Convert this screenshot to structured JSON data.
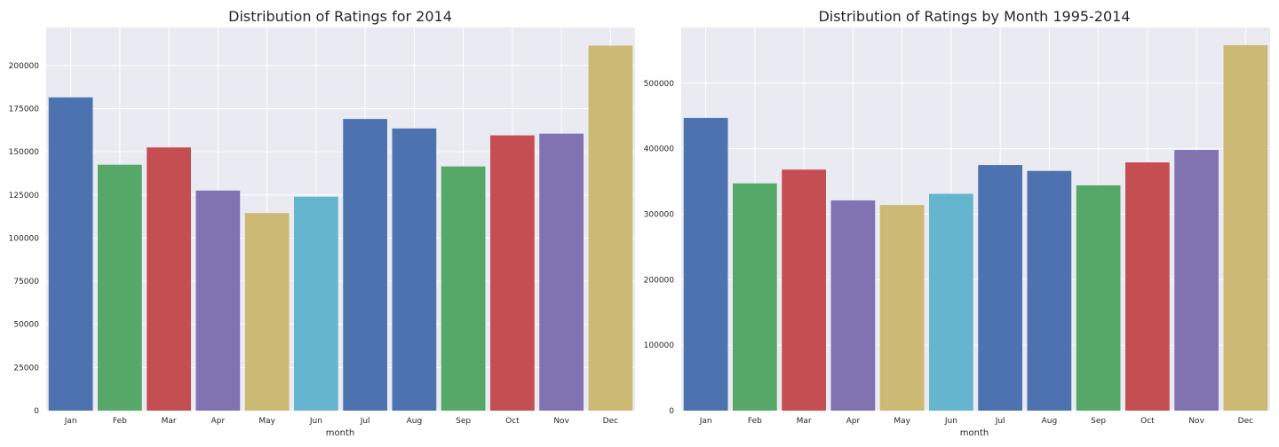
{
  "chart_data": [
    {
      "type": "bar",
      "title": "Distribution of Ratings for 2014",
      "xlabel": "month",
      "ylabel": "",
      "categories": [
        "Jan",
        "Feb",
        "Mar",
        "Apr",
        "May",
        "Jun",
        "Jul",
        "Aug",
        "Sep",
        "Oct",
        "Nov",
        "Dec"
      ],
      "values": [
        181500,
        142500,
        152500,
        127500,
        114500,
        124000,
        169000,
        163500,
        141500,
        159500,
        160500,
        211500
      ],
      "colors": [
        "#4C72B0",
        "#55A868",
        "#C44E52",
        "#8172B2",
        "#CCB974",
        "#64B5CD",
        "#4C72B0",
        "#4C72B0",
        "#55A868",
        "#C44E52",
        "#8172B2",
        "#CCB974"
      ],
      "yticks": [
        0,
        25000,
        50000,
        75000,
        100000,
        125000,
        150000,
        175000,
        200000
      ],
      "ylim": [
        0,
        222000
      ],
      "grid": true,
      "background": "#EAEAF2"
    },
    {
      "type": "bar",
      "title": "Distribution of Ratings by Month 1995-2014",
      "xlabel": "month",
      "ylabel": "",
      "categories": [
        "Jan",
        "Feb",
        "Mar",
        "Apr",
        "May",
        "Jun",
        "Jul",
        "Aug",
        "Sep",
        "Oct",
        "Nov",
        "Dec"
      ],
      "values": [
        447000,
        347000,
        368000,
        321000,
        314000,
        331000,
        375000,
        366000,
        344000,
        379000,
        398000,
        558000
      ],
      "colors": [
        "#4C72B0",
        "#55A868",
        "#C44E52",
        "#8172B2",
        "#CCB974",
        "#64B5CD",
        "#4C72B0",
        "#4C72B0",
        "#55A868",
        "#C44E52",
        "#8172B2",
        "#CCB974"
      ],
      "yticks": [
        0,
        100000,
        200000,
        300000,
        400000,
        500000
      ],
      "ylim": [
        0,
        585000
      ],
      "grid": true,
      "background": "#EAEAF2"
    }
  ]
}
